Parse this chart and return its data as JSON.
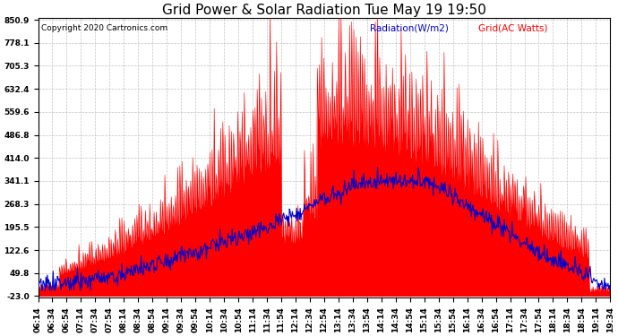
{
  "title": "Grid Power & Solar Radiation Tue May 19 19:50",
  "copyright": "Copyright 2020 Cartronics.com",
  "legend_radiation": "Radiation(W/m2)",
  "legend_grid": "Grid(AC Watts)",
  "y_ticks": [
    850.9,
    778.1,
    705.3,
    632.4,
    559.6,
    486.8,
    414.0,
    341.1,
    268.3,
    195.5,
    122.6,
    49.8,
    -23.0
  ],
  "ymin": -23.0,
  "ymax": 850.9,
  "background_color": "#ffffff",
  "plot_bg_color": "#ffffff",
  "grid_color": "#bbbbbb",
  "fill_color": "#ff0000",
  "line_color_grid": "#ff0000",
  "line_color_radiation": "#0000cd",
  "title_fontsize": 11,
  "tick_fontsize": 6.5,
  "copyright_fontsize": 6.5,
  "legend_fontsize": 7.5
}
